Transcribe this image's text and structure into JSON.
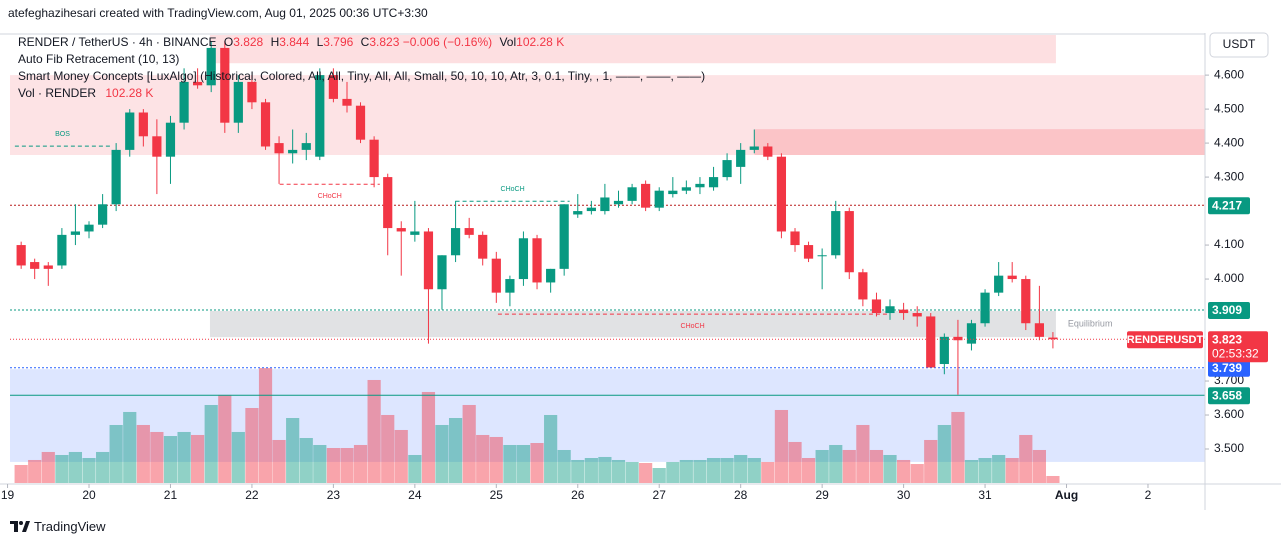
{
  "header": {
    "title": "atefeghazihesari created with TradingView.com, Aug 01, 2025 00:36 UTC+3:30"
  },
  "footer": {
    "brand": "TradingView"
  },
  "chart_data": {
    "type": "candlestick",
    "currency": "USDT",
    "legend": {
      "symbol": "RENDER / TetherUS · 4h · BINANCE",
      "keys": [
        "O",
        "H",
        "L",
        "C"
      ],
      "change": "−0.006 (−0.16%)",
      "volume_key": "Vol",
      "volume_label": "102.28 K",
      "indicators": [
        "Auto Fib Retracement (10, 13)",
        "Smart Money Concepts [LuxAlgo] (Historical, Colored, All, All, Tiny, All, All, Small, 50, 10, 10, Atr, 3, 0.1, Tiny, , 1, ——, ——, ——)",
        "Vol · RENDER"
      ]
    },
    "up_color": "#089981",
    "down_color": "#f23645",
    "x": [
      19.167,
      19.333,
      19.5,
      19.667,
      19.833,
      20,
      20.167,
      20.333,
      20.5,
      20.667,
      20.833,
      21,
      21.167,
      21.333,
      21.5,
      21.667,
      21.833,
      22,
      22.167,
      22.333,
      22.5,
      22.667,
      22.833,
      23,
      23.167,
      23.333,
      23.5,
      23.667,
      23.833,
      24,
      24.167,
      24.333,
      24.5,
      24.667,
      24.833,
      25,
      25.167,
      25.333,
      25.5,
      25.667,
      25.833,
      26,
      26.167,
      26.333,
      26.5,
      26.667,
      26.833,
      27,
      27.167,
      27.333,
      27.5,
      27.667,
      27.833,
      28,
      28.167,
      28.333,
      28.5,
      28.667,
      28.833,
      29,
      29.167,
      29.333,
      29.5,
      29.667,
      29.833,
      30,
      30.167,
      30.333,
      30.5,
      30.667,
      30.833,
      31,
      31.167,
      31.333,
      31.5,
      31.667,
      31.833
    ],
    "open": [
      4.1,
      4.05,
      4.04,
      4.04,
      4.13,
      4.14,
      4.16,
      4.22,
      4.38,
      4.49,
      4.42,
      4.36,
      4.46,
      4.58,
      4.57,
      4.68,
      4.46,
      4.58,
      4.52,
      4.4,
      4.37,
      4.38,
      4.36,
      4.6,
      4.53,
      4.51,
      4.41,
      4.3,
      4.15,
      4.13,
      4.14,
      3.97,
      4.07,
      4.15,
      4.13,
      4.06,
      3.96,
      4.0,
      4.12,
      3.99,
      4.03,
      4.19,
      4.2,
      4.2,
      4.22,
      4.23,
      4.28,
      4.21,
      4.25,
      4.26,
      4.27,
      4.27,
      4.3,
      4.33,
      4.38,
      4.39,
      4.36,
      4.14,
      4.1,
      4.07,
      4.07,
      4.2,
      4.02,
      3.94,
      3.9,
      3.91,
      3.9,
      3.89,
      3.75,
      3.83,
      3.81,
      3.87,
      3.96,
      4.01,
      4.0,
      3.87,
      3.828
    ],
    "high": [
      4.11,
      4.06,
      4.05,
      4.15,
      4.22,
      4.17,
      4.25,
      4.4,
      4.5,
      4.5,
      4.47,
      4.48,
      4.62,
      4.62,
      4.7,
      4.7,
      4.6,
      4.6,
      4.53,
      4.42,
      4.44,
      4.43,
      4.62,
      4.62,
      4.58,
      4.52,
      4.42,
      4.31,
      4.17,
      4.23,
      4.15,
      4.07,
      4.23,
      4.18,
      4.14,
      4.08,
      4.01,
      4.14,
      4.13,
      4.03,
      4.22,
      4.25,
      4.23,
      4.28,
      4.26,
      4.28,
      4.29,
      4.27,
      4.3,
      4.29,
      4.3,
      4.33,
      4.37,
      4.4,
      4.44,
      4.4,
      4.37,
      4.15,
      4.11,
      4.09,
      4.23,
      4.21,
      4.03,
      3.96,
      3.94,
      3.93,
      3.92,
      3.9,
      3.84,
      3.88,
      3.88,
      3.97,
      4.05,
      4.05,
      4.01,
      3.98,
      3.844
    ],
    "low": [
      4.03,
      4.0,
      3.98,
      4.03,
      4.1,
      4.12,
      4.15,
      4.2,
      4.36,
      4.39,
      4.25,
      4.28,
      4.44,
      4.56,
      4.55,
      4.43,
      4.43,
      4.5,
      4.38,
      4.28,
      4.34,
      4.35,
      4.35,
      4.52,
      4.49,
      4.4,
      4.27,
      4.07,
      4.01,
      4.11,
      3.81,
      3.91,
      4.05,
      4.12,
      4.04,
      3.93,
      3.92,
      3.98,
      3.97,
      3.96,
      4.01,
      4.18,
      4.19,
      4.19,
      4.21,
      4.22,
      4.2,
      4.2,
      4.24,
      4.25,
      4.25,
      4.26,
      4.29,
      4.28,
      4.37,
      4.35,
      4.12,
      4.08,
      4.05,
      3.97,
      4.06,
      4.0,
      3.92,
      3.89,
      3.88,
      3.88,
      3.86,
      3.74,
      3.72,
      3.66,
      3.79,
      3.86,
      3.95,
      3.99,
      3.85,
      3.82,
      3.796
    ],
    "close": [
      4.04,
      4.03,
      4.03,
      4.13,
      4.14,
      4.16,
      4.22,
      4.38,
      4.49,
      4.42,
      4.36,
      4.46,
      4.58,
      4.57,
      4.68,
      4.46,
      4.58,
      4.52,
      4.39,
      4.37,
      4.38,
      4.4,
      4.6,
      4.53,
      4.51,
      4.41,
      4.3,
      4.15,
      4.14,
      4.14,
      3.97,
      4.07,
      4.15,
      4.13,
      4.06,
      3.96,
      4.0,
      4.12,
      3.99,
      4.03,
      4.22,
      4.2,
      4.21,
      4.24,
      4.23,
      4.27,
      4.21,
      4.26,
      4.26,
      4.27,
      4.28,
      4.3,
      4.35,
      4.38,
      4.39,
      4.36,
      4.14,
      4.1,
      4.06,
      4.07,
      4.2,
      4.02,
      3.94,
      3.9,
      3.92,
      3.9,
      3.89,
      3.74,
      3.83,
      3.82,
      3.87,
      3.96,
      4.01,
      4.0,
      3.87,
      3.83,
      3.823
    ],
    "volume": [
      263,
      336,
      453,
      409,
      453,
      365,
      453,
      847,
      1037,
      847,
      745,
      686,
      745,
      701,
      1139,
      1285,
      745,
      1095,
      1679,
      628,
      949,
      657,
      555,
      511,
      511,
      555,
      1504,
      993,
      774,
      409,
      1329,
      847,
      949,
      1139,
      701,
      672,
      555,
      555,
      584,
      993,
      482,
      336,
      365,
      380,
      336,
      307,
      292,
      219,
      307,
      336,
      336,
      365,
      365,
      409,
      365,
      307,
      1066,
      599,
      365,
      482,
      555,
      482,
      847,
      482,
      409,
      336,
      277,
      628,
      847,
      1037,
      336,
      365,
      409,
      365,
      701,
      482,
      102.28
    ],
    "xlim": [
      19.03,
      33.7
    ],
    "xticks": [
      19,
      20,
      21,
      22,
      23,
      24,
      25,
      26,
      27,
      28,
      29,
      30,
      31,
      {
        "value": 32,
        "label": "Aug"
      },
      2,
      {
        "value": 33,
        "label": "2"
      }
    ],
    "ylim": [
      3.4,
      4.718
    ],
    "yticks": [
      {
        "value": 3.5,
        "label": "3.500"
      },
      {
        "value": 3.6,
        "label": "3.600"
      },
      {
        "value": 3.7,
        "label": "3.700"
      },
      {
        "value": 4.0,
        "label": "4.000"
      },
      {
        "value": 4.1,
        "label": "4.100"
      },
      {
        "value": 4.3,
        "label": "4.300"
      },
      {
        "value": 4.4,
        "label": "4.400"
      },
      {
        "value": 4.5,
        "label": "4.500"
      },
      {
        "value": 4.6,
        "label": "4.600"
      }
    ],
    "zones": [
      {
        "x": [
          21.485,
          31.87
        ],
        "y": [
          4.635,
          4.718
        ],
        "color": "rgba(242,54,69,0.16)"
      },
      {
        "x": [
          19.03,
          33.7
        ],
        "y": [
          4.365,
          4.6
        ],
        "color": "rgba(242,54,69,0.14)"
      },
      {
        "x": [
          28.17,
          33.7
        ],
        "y": [
          4.365,
          4.441
        ],
        "color": "rgba(242,54,69,0.18)"
      },
      {
        "x": [
          21.485,
          31.87
        ],
        "y": [
          3.829,
          3.906
        ],
        "color": "rgba(120,123,134,0.22)",
        "label": "Equilibrium"
      },
      {
        "x": [
          19.03,
          33.7
        ],
        "y": [
          3.462,
          3.735
        ],
        "color": "rgba(41,98,255,0.16)"
      }
    ],
    "structure": [
      {
        "label": "BOS",
        "x": [
          19.09,
          20.26
        ],
        "y": 4.391,
        "color": "#089981",
        "side": "above"
      },
      {
        "label": "CHoCH",
        "x": [
          22.34,
          23.57
        ],
        "y": 4.279,
        "color": "#f23645",
        "side": "below"
      },
      {
        "label": "CHoCH",
        "x": [
          24.5,
          25.9
        ],
        "y": 4.229,
        "color": "#089981",
        "side": "above"
      },
      {
        "label": "CHoCH",
        "x": [
          25.02,
          29.8
        ],
        "y": 3.897,
        "color": "#f23645",
        "side": "below"
      }
    ],
    "levels": [
      {
        "value": 4.217,
        "label": "4.217",
        "color": "#089981",
        "line": "#b71c1c"
      },
      {
        "value": 3.909,
        "label": "3.909",
        "color": "#089981",
        "line": "#089981"
      },
      {
        "value": 3.739,
        "label": "3.739",
        "color": "#2962ff",
        "line": "#2962ff"
      },
      {
        "value": 3.658,
        "label": "3.658",
        "color": "#089981",
        "line": "#089981"
      }
    ],
    "last_price": {
      "symbol": "RENDERUSDT",
      "countdown": "02:53:32",
      "color": "#f23645"
    }
  }
}
